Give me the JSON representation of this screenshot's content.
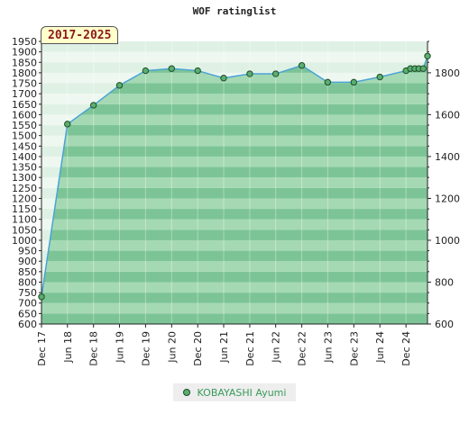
{
  "chart_data": {
    "type": "area",
    "title": "WOF ratinglist",
    "badge": "2017-2025",
    "x": [
      "2017-12",
      "2018-06",
      "2018-12",
      "2019-06",
      "2019-12",
      "2020-06",
      "2020-12",
      "2021-06",
      "2021-12",
      "2022-06",
      "2022-12",
      "2023-06",
      "2023-12",
      "2024-06",
      "2024-12",
      "2025-01",
      "2025-02",
      "2025-03",
      "2025-04",
      "2025-05"
    ],
    "series": [
      {
        "name": "KOBAYASHI Ayumi",
        "values": [
          730,
          1555,
          1645,
          1740,
          1810,
          1820,
          1810,
          1775,
          1795,
          1795,
          1835,
          1755,
          1755,
          1780,
          1810,
          1820,
          1820,
          1820,
          1820,
          1880
        ]
      }
    ],
    "x_tick_labels": [
      "Dec 17",
      "Jun 18",
      "Dec 18",
      "Jun 19",
      "Dec 19",
      "Jun 20",
      "Dec 20",
      "Jun 21",
      "Dec 21",
      "Jun 22",
      "Dec 22",
      "Jun 23",
      "Dec 23",
      "Jun 24",
      "Dec 24"
    ],
    "y_left_ticks": [
      600,
      650,
      700,
      750,
      800,
      850,
      900,
      950,
      1000,
      1050,
      1100,
      1150,
      1200,
      1250,
      1300,
      1350,
      1400,
      1450,
      1500,
      1550,
      1600,
      1650,
      1700,
      1750,
      1800,
      1850,
      1900,
      1950
    ],
    "y_right_ticks": [
      600,
      800,
      1000,
      1200,
      1400,
      1600,
      1800
    ],
    "ylim": [
      600,
      1950
    ],
    "legend_position": "bottom-center",
    "colors": {
      "fill": "#7cc496",
      "stripe": "#a5d9b4",
      "line": "#4aa3d6",
      "marker": "#5aae6e",
      "badge_text": "#8b1a1a"
    }
  }
}
